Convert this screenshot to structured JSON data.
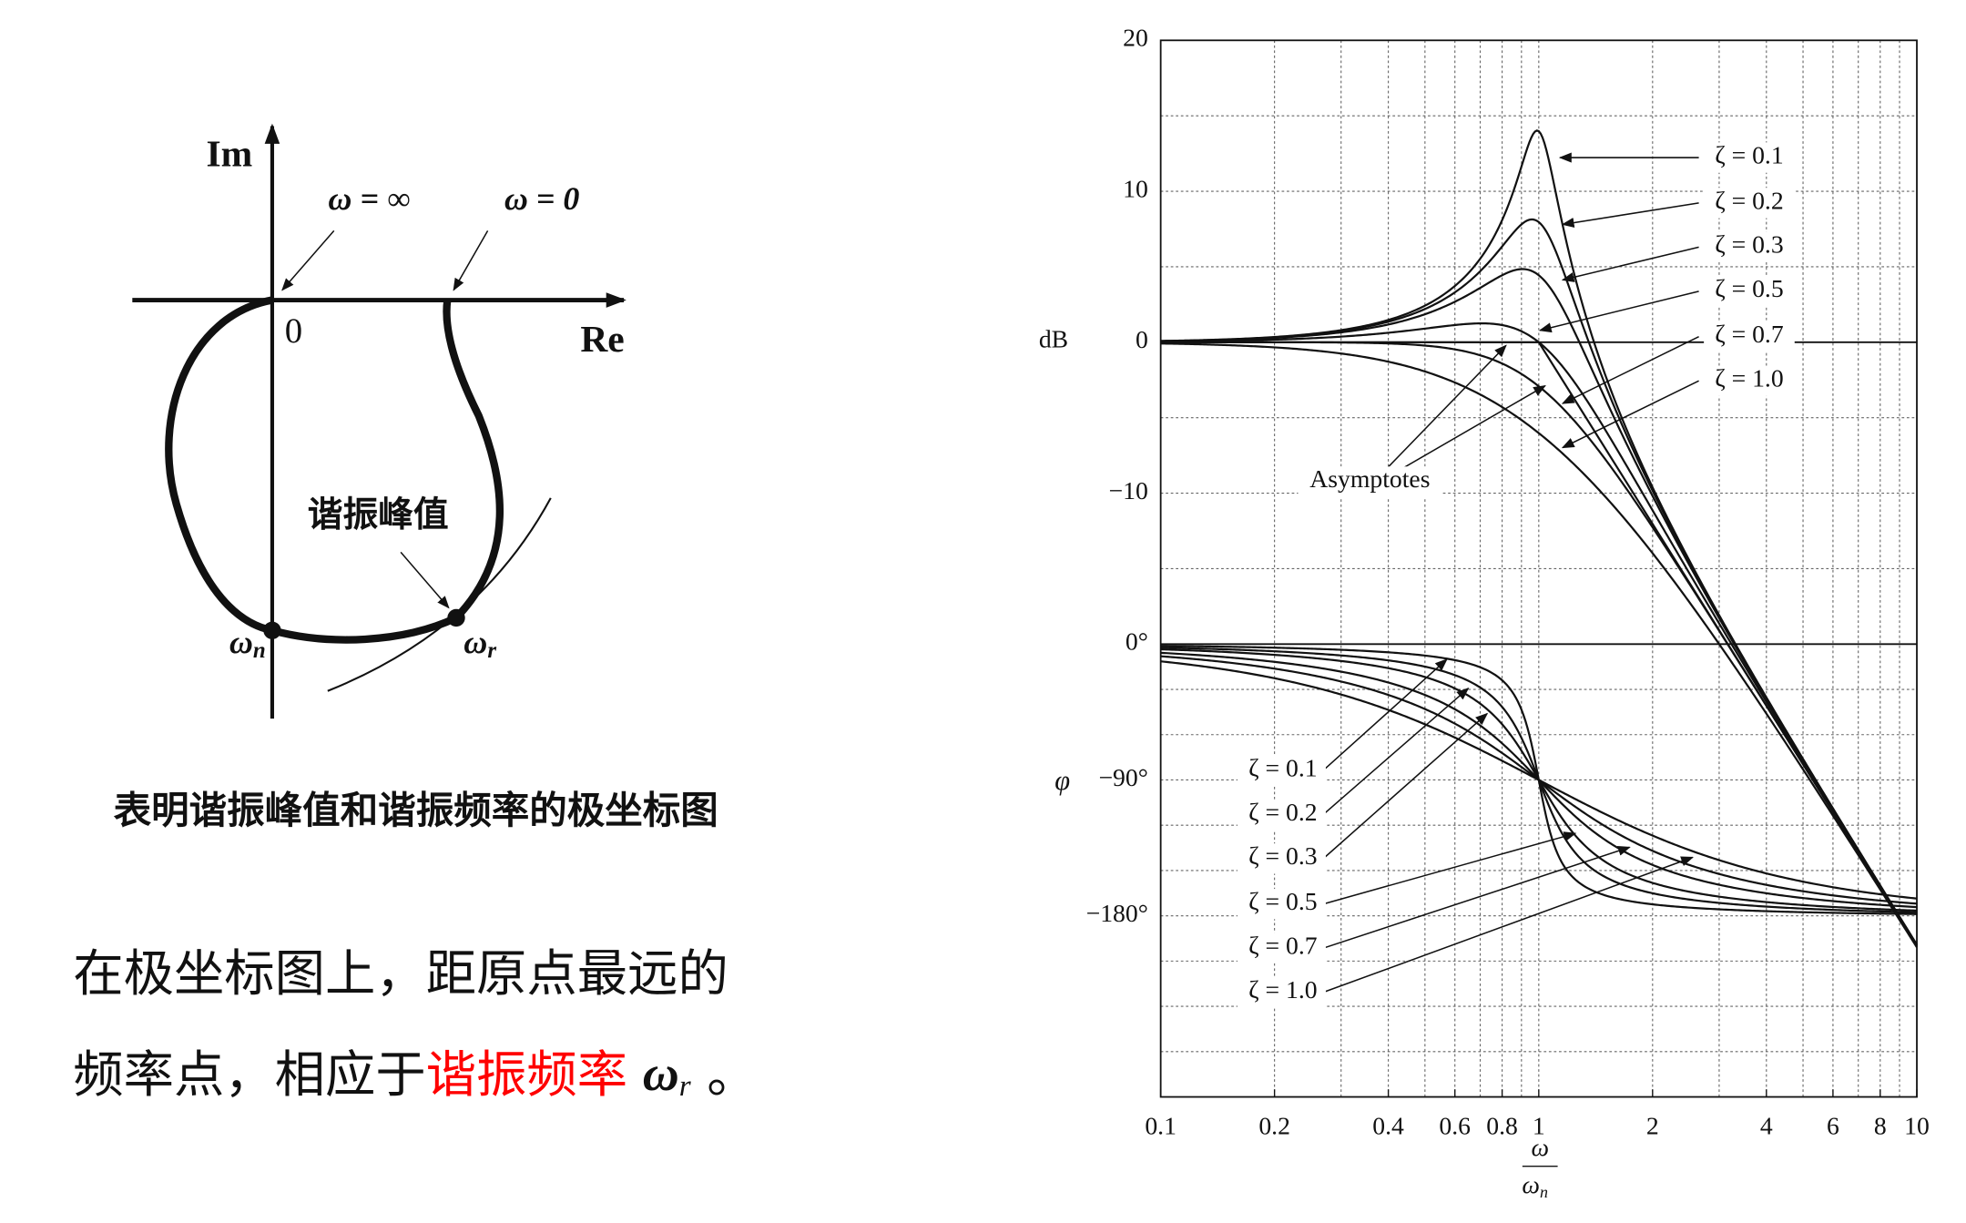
{
  "polar_diagram": {
    "axis_labels": {
      "im": "Im",
      "re": "Re",
      "origin": "0"
    },
    "annotations": {
      "omega_inf": "ω = ∞",
      "omega_zero": "ω = 0",
      "peak": "谐振峰值",
      "omega_n": {
        "symbol": "ω",
        "subscript": "n"
      },
      "omega_r": {
        "symbol": "ω",
        "subscript": "r"
      }
    }
  },
  "caption": "表明谐振峰值和谐振频率的极坐标图",
  "body": {
    "line1": "在极坐标图上，距原点最远的",
    "line2": {
      "text": "频率点，相应于",
      "highlight": "谐振频率",
      "symbol": "ω",
      "subscript": "r",
      "end": " 。"
    }
  },
  "bode_plot": {
    "xlim": [
      0.1,
      10
    ],
    "xticks": [
      0.1,
      0.2,
      0.4,
      0.6,
      0.8,
      1,
      2,
      4,
      6,
      8,
      10
    ],
    "xgrid": [
      0.2,
      0.3,
      0.4,
      0.5,
      0.6,
      0.7,
      0.8,
      0.9,
      1,
      2,
      3,
      4,
      5,
      6,
      7,
      8,
      9
    ],
    "ylim": [
      -50,
      20
    ],
    "yticks": [
      20,
      10,
      0,
      {
        "value": -10,
        "label": "−10"
      }
    ],
    "ygrid": [
      20,
      15,
      10,
      5,
      -5,
      -10,
      -15
    ],
    "y2lim": [
      -300,
      400
    ],
    "y2ticks": [
      {
        "value": 0,
        "label": "0°"
      },
      {
        "value": -90,
        "label": "−90°"
      },
      {
        "value": -180,
        "label": "−180°"
      }
    ],
    "y2grid": [
      -30,
      -60,
      -90,
      -120,
      -150,
      -180,
      -210,
      -240,
      -270
    ],
    "ylabel": "dB",
    "y2label": "φ",
    "xlabel": {
      "numerator": "ω",
      "denominator": {
        "symbol": "ω",
        "subscript": "n"
      }
    },
    "asymptote_label": "Asymptotes",
    "series": [
      {
        "label": "ζ = 0.1",
        "zeta": 0.1
      },
      {
        "label": "ζ = 0.2",
        "zeta": 0.2
      },
      {
        "label": "ζ = 0.3",
        "zeta": 0.3
      },
      {
        "label": "ζ = 0.5",
        "zeta": 0.5
      },
      {
        "label": "ζ = 0.7",
        "zeta": 0.7
      },
      {
        "label": "ζ = 1.0",
        "zeta": 1.0
      }
    ]
  }
}
